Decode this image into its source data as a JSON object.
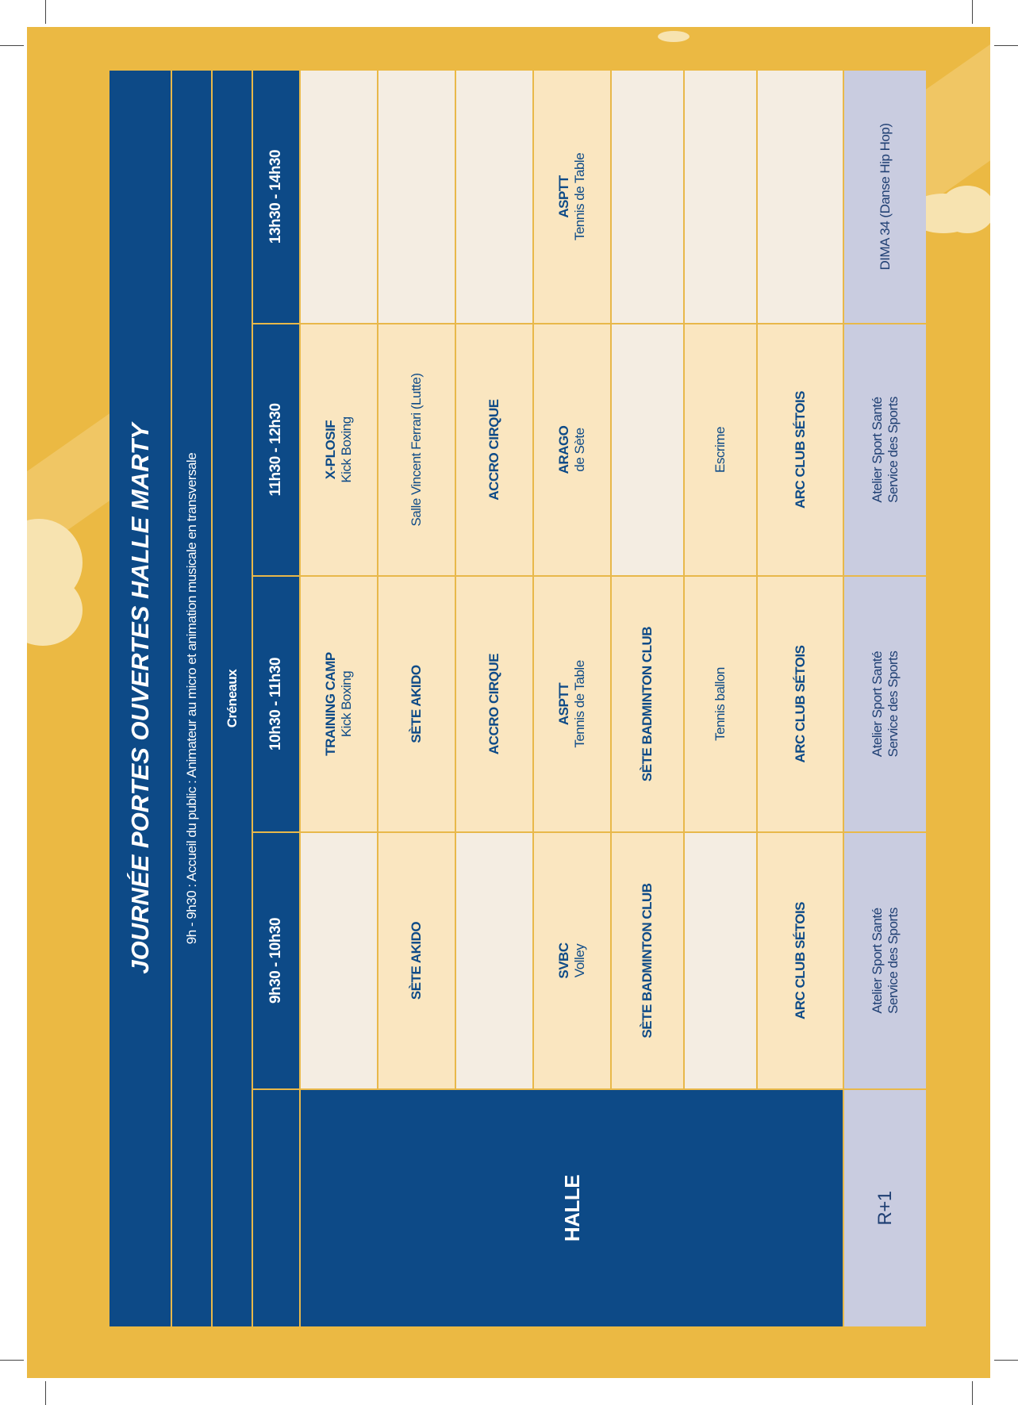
{
  "header": {
    "title": "JOURNÉE PORTES OUVERTES HALLE MARTY",
    "subtitle": "9h - 9h30 : Accueil du public : Animateur au micro et animation musicale en transversale",
    "slots_label": "Créneaux"
  },
  "time_slots": [
    "9h30 - 10h30",
    "10h30 - 11h30",
    "11h30 - 12h30",
    "13h30 - 14h30"
  ],
  "halle": {
    "label": "HALLE",
    "rows": [
      [
        {
          "l1": "",
          "l2": ""
        },
        {
          "l1": "TRAINING CAMP",
          "l2": "Kick Boxing"
        },
        {
          "l1": "X-PLOSIF",
          "l2": "Kick Boxing"
        },
        {
          "l1": "",
          "l2": ""
        }
      ],
      [
        {
          "l1": "SÈTE AKIDO",
          "l2": ""
        },
        {
          "l1": "SÈTE AKIDO",
          "l2": ""
        },
        {
          "l1": "",
          "l2": "Salle Vincent Ferrari (Lutte)"
        },
        {
          "l1": "",
          "l2": ""
        }
      ],
      [
        {
          "l1": "",
          "l2": ""
        },
        {
          "l1": "ACCRO CIRQUE",
          "l2": ""
        },
        {
          "l1": "ACCRO CIRQUE",
          "l2": ""
        },
        {
          "l1": "",
          "l2": ""
        }
      ],
      [
        {
          "l1": "SVBC",
          "l2": "Volley"
        },
        {
          "l1": "ASPTT",
          "l2": "Tennis de Table"
        },
        {
          "l1": "ARAGO",
          "l2": "de Sète"
        },
        {
          "l1": "ASPTT",
          "l2": "Tennis de Table"
        }
      ],
      [
        {
          "l1": "SÈTE BADMINTON CLUB",
          "l2": ""
        },
        {
          "l1": "SÈTE BADMINTON CLUB",
          "l2": ""
        },
        {
          "l1": "",
          "l2": ""
        },
        {
          "l1": "",
          "l2": ""
        }
      ],
      [
        {
          "l1": "",
          "l2": ""
        },
        {
          "l1": "",
          "l2": "Tennis ballon"
        },
        {
          "l1": "",
          "l2": "Escrime"
        },
        {
          "l1": "",
          "l2": ""
        }
      ],
      [
        {
          "l1": "ARC CLUB SÉTOIS",
          "l2": ""
        },
        {
          "l1": "ARC CLUB SÉTOIS",
          "l2": ""
        },
        {
          "l1": "ARC CLUB SÉTOIS",
          "l2": ""
        },
        {
          "l1": "",
          "l2": ""
        }
      ]
    ]
  },
  "r1": {
    "label": "R+1",
    "cells": [
      {
        "l1": "Atelier Sport Santé",
        "l2": "Service des Sports"
      },
      {
        "l1": "Atelier Sport Santé",
        "l2": "Service des Sports"
      },
      {
        "l1": "Atelier Sport Santé",
        "l2": "Service des Sports"
      },
      {
        "l1": "DIMA 34 (Danse Hip Hop)",
        "l2": ""
      }
    ]
  },
  "colors": {
    "blue": "#0d4a87",
    "gold": "#ebb943",
    "cream": "#f4ede2",
    "peach": "#fae6c0",
    "lavender": "#c9cce0"
  }
}
